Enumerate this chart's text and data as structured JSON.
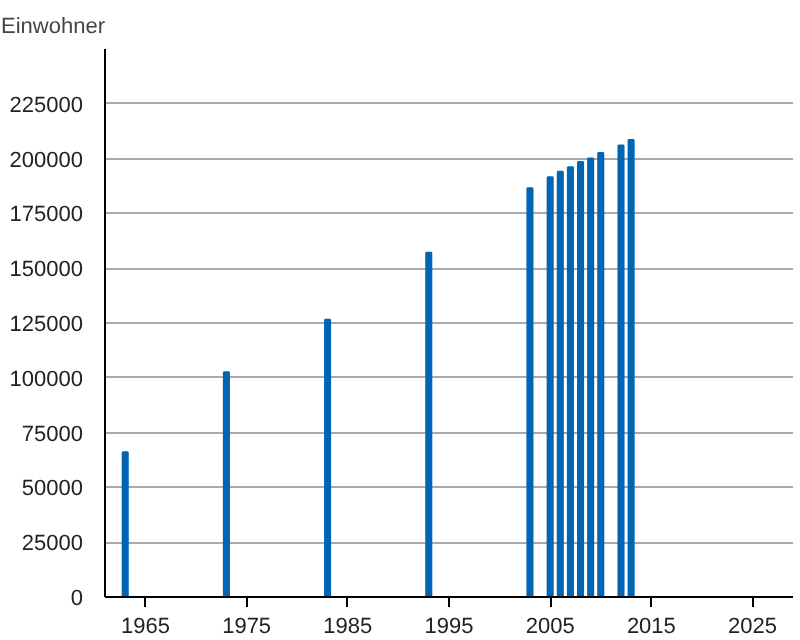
{
  "chart_data": {
    "type": "bar",
    "ylabel": "Einwohner",
    "x": [
      1963,
      1973,
      1983,
      1993,
      2003,
      2005,
      2006,
      2007,
      2008,
      2009,
      2010,
      2012,
      2013
    ],
    "values": [
      66000,
      102500,
      126500,
      157000,
      186500,
      191500,
      194000,
      196000,
      198500,
      200000,
      202500,
      206000,
      208500
    ],
    "color": "#0065b3",
    "xlim": [
      1961,
      2029
    ],
    "xticks": [
      1965,
      1975,
      1985,
      1995,
      2005,
      2015,
      2025
    ],
    "ylim": [
      0,
      250000
    ],
    "yticks": [
      0,
      25000,
      50000,
      75000,
      100000,
      125000,
      150000,
      175000,
      200000,
      225000
    ],
    "grid": "y"
  }
}
